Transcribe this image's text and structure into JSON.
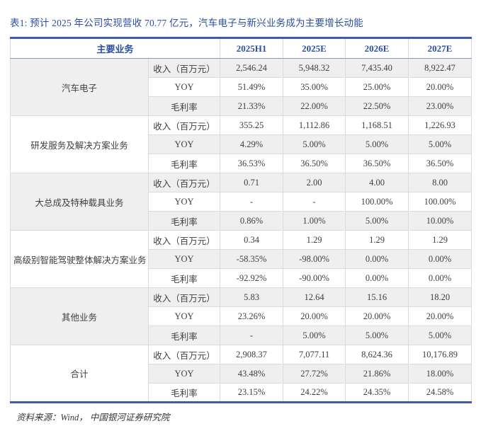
{
  "title": "表1:  预计 2025 年公司实现营收 70.77 亿元，汽车电子与新兴业务成为主要增长动能",
  "source": "资料来源：Wind， 中国银河证券研究院",
  "colors": {
    "accent_text": "#2d4f9d",
    "accent_border": "#3e5ca8",
    "header_underline": "#8497c6",
    "cell_border": "#dbdbdb",
    "stripe_row": "#efefef",
    "body_text": "#404040"
  },
  "table": {
    "header": {
      "business_label": "主要业务",
      "periods": [
        "2025H1",
        "2025E",
        "2026E",
        "2027E"
      ]
    },
    "sections": [
      {
        "name": "汽车电子",
        "rows": [
          {
            "metric": "收入（百万元）",
            "values": [
              "2,546.24",
              "5,948.32",
              "7,435.40",
              "8,922.47"
            ]
          },
          {
            "metric": "YOY",
            "values": [
              "51.49%",
              "35.00%",
              "25.00%",
              "20.00%"
            ]
          },
          {
            "metric": "毛利率",
            "values": [
              "21.33%",
              "22.00%",
              "22.50%",
              "23.00%"
            ]
          }
        ]
      },
      {
        "name": "研发服务及解决方案业务",
        "rows": [
          {
            "metric": "收入（百万元）",
            "values": [
              "355.25",
              "1,112.86",
              "1,168.51",
              "1,226.93"
            ]
          },
          {
            "metric": "YOY",
            "values": [
              "4.29%",
              "5.00%",
              "5.00%",
              "5.00%"
            ]
          },
          {
            "metric": "毛利率",
            "values": [
              "36.53%",
              "36.50%",
              "36.50%",
              "36.50%"
            ]
          }
        ]
      },
      {
        "name": "大总成及特种载具业务",
        "rows": [
          {
            "metric": "收入（百万元）",
            "values": [
              "0.71",
              "2.00",
              "4.00",
              "8.00"
            ]
          },
          {
            "metric": "YOY",
            "values": [
              "-",
              "-",
              "100.00%",
              "100.00%"
            ]
          },
          {
            "metric": "毛利率",
            "values": [
              "0.86%",
              "1.00%",
              "5.00%",
              "10.00%"
            ]
          }
        ]
      },
      {
        "name": "高级别智能驾驶整体解决方案业务",
        "rows": [
          {
            "metric": "收入（百万元）",
            "values": [
              "0.34",
              "1.29",
              "1.29",
              "1.29"
            ]
          },
          {
            "metric": "YOY",
            "values": [
              "-58.35%",
              "-98.00%",
              "0.00%",
              "0.00%"
            ]
          },
          {
            "metric": "毛利率",
            "values": [
              "-92.92%",
              "-90.00%",
              "0.00%",
              "0.00%"
            ]
          }
        ]
      },
      {
        "name": "其他业务",
        "rows": [
          {
            "metric": "收入（百万元）",
            "values": [
              "5.83",
              "12.64",
              "15.16",
              "18.20"
            ]
          },
          {
            "metric": "YOY",
            "values": [
              "23.26%",
              "20.00%",
              "20.00%",
              "20.00%"
            ]
          },
          {
            "metric": "毛利率",
            "values": [
              "-",
              "5.00%",
              "5.00%",
              "5.00%"
            ]
          }
        ]
      },
      {
        "name": "合计",
        "rows": [
          {
            "metric": "收入（百万元）",
            "values": [
              "2,908.37",
              "7,077.11",
              "8,624.36",
              "10,176.89"
            ]
          },
          {
            "metric": "YOY",
            "values": [
              "43.48%",
              "27.72%",
              "21.86%",
              "18.00%"
            ]
          },
          {
            "metric": "毛利率",
            "values": [
              "23.15%",
              "24.22%",
              "24.35%",
              "24.58%"
            ]
          }
        ]
      }
    ]
  }
}
